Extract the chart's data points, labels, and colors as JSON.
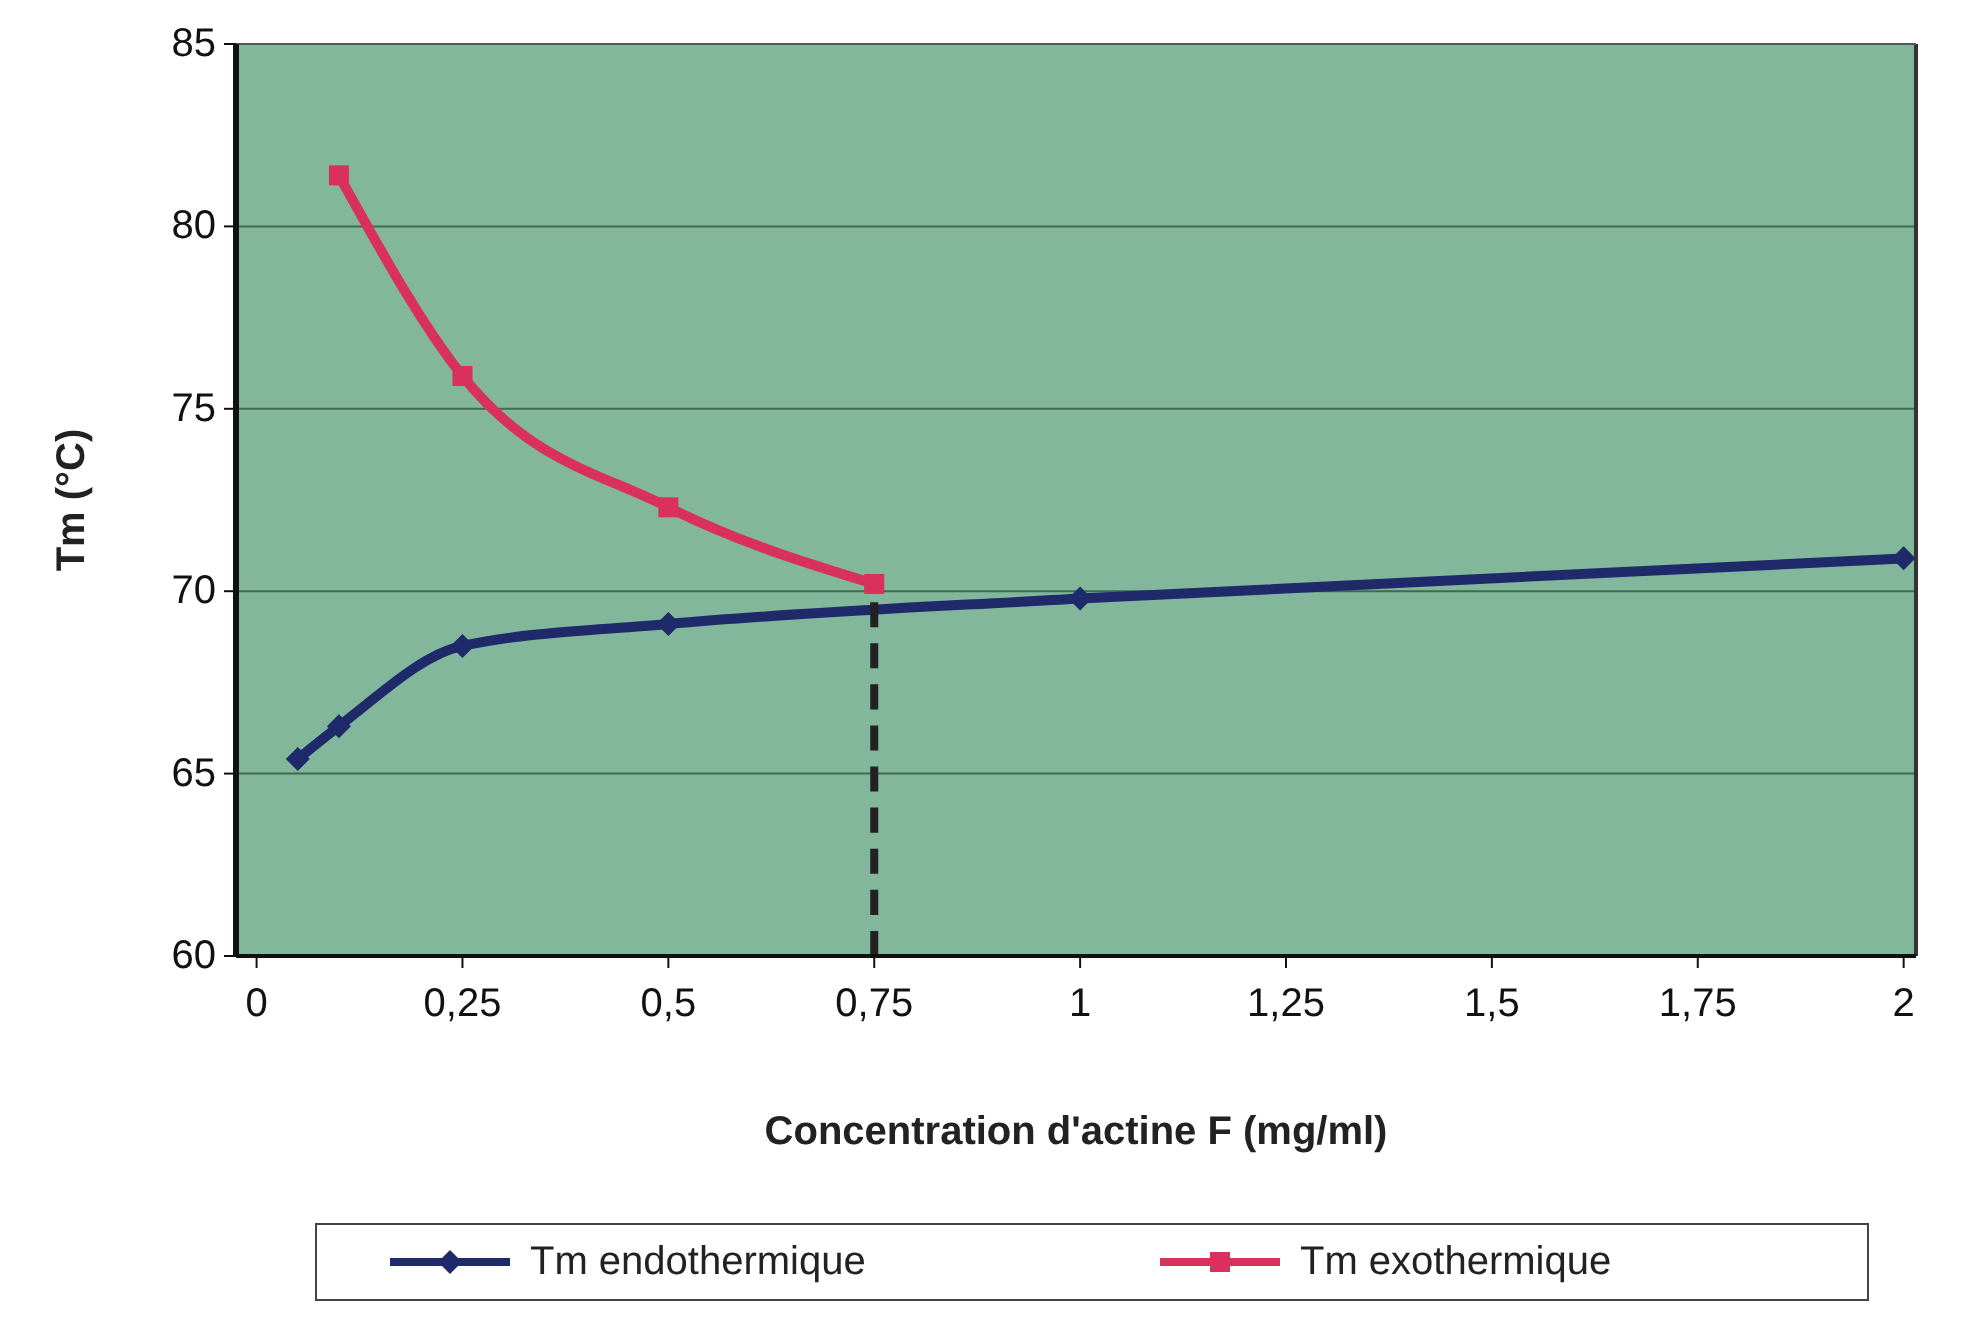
{
  "chart_data": {
    "type": "line",
    "xlabel": "Concentration d'actine F (mg/ml)",
    "ylabel": "Tm (°C)",
    "xlim": [
      -0.025,
      2.015
    ],
    "ylim": [
      60,
      85
    ],
    "xticks": [
      0,
      {
        "value": 0.25,
        "label": "0,25"
      },
      {
        "value": 0.5,
        "label": "0,5"
      },
      {
        "value": 0.75,
        "label": "0,75"
      },
      1,
      {
        "value": 1.25,
        "label": "1,25"
      },
      {
        "value": 1.5,
        "label": "1,5"
      },
      {
        "value": 1.75,
        "label": "1,75"
      },
      2
    ],
    "yticks": [
      60,
      65,
      70,
      75,
      80,
      85
    ],
    "grid": "y",
    "legend": "bottom",
    "series": [
      {
        "name": "Tm endothermique",
        "color": "#1f2a6b",
        "marker": "diamond",
        "line_style": "solid",
        "x": [
          0.05,
          0.1,
          0.25,
          0.5,
          1,
          2
        ],
        "values": [
          65.4,
          66.3,
          68.5,
          69.1,
          69.8,
          70.9
        ]
      },
      {
        "name": "Tm exothermique",
        "color": "#d9305c",
        "marker": "square",
        "line_style": "solid",
        "x": [
          0.1,
          0.25,
          0.5,
          0.75
        ],
        "values": [
          81.4,
          75.9,
          72.3,
          70.2
        ]
      },
      {
        "color": "#222222",
        "marker": "none",
        "line_style": "dashed",
        "x": [
          0.75,
          0.75
        ],
        "values": [
          60,
          69.7
        ]
      }
    ]
  }
}
